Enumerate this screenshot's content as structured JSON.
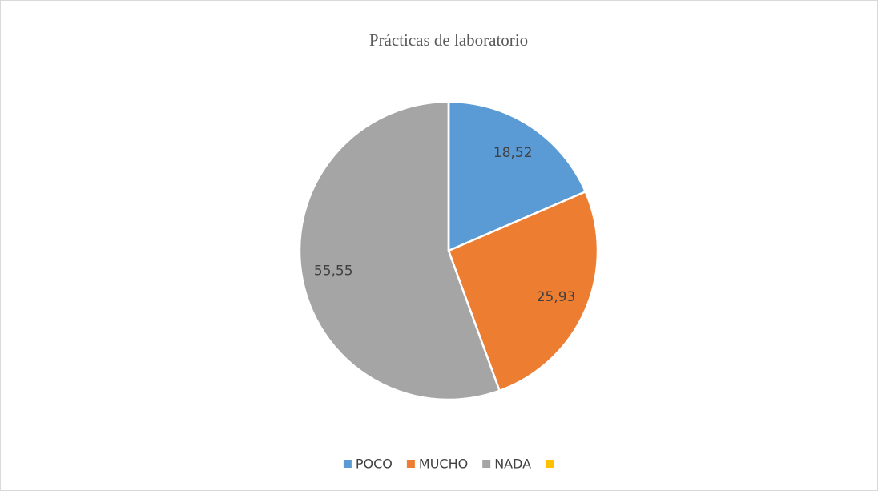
{
  "chart_data": {
    "type": "pie",
    "title": "Prácticas de laboratorio",
    "categories": [
      "POCO",
      "MUCHO",
      "NADA",
      null
    ],
    "values": [
      18.52,
      25.93,
      55.55,
      0
    ],
    "value_labels": [
      "18,52",
      "25,93",
      "55,55",
      null
    ],
    "colors": [
      "#5b9bd5",
      "#ed7d31",
      "#a5a5a5",
      "#ffc000"
    ],
    "legend": "bottom"
  }
}
